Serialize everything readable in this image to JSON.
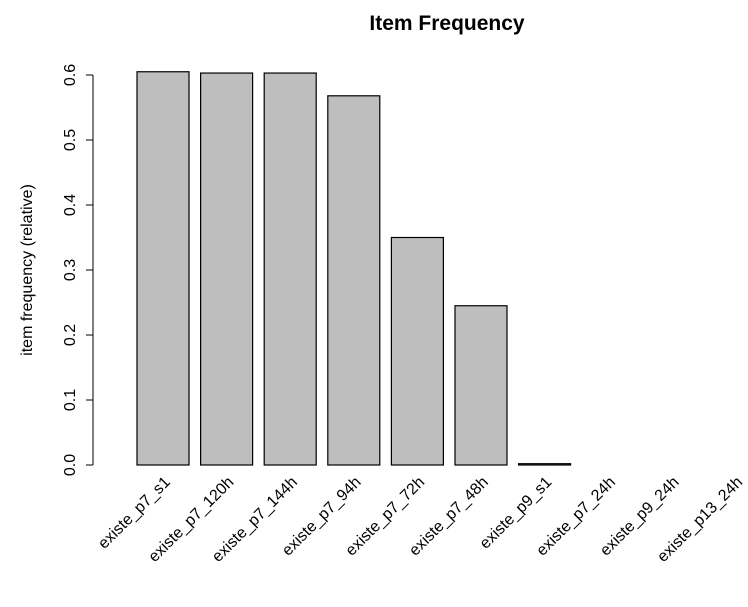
{
  "chart_data": {
    "type": "bar",
    "title": "Item Frequency",
    "xlabel": "",
    "ylabel": "item frequency (relative)",
    "categories": [
      "existe_p7_s1",
      "existe_p7_120h",
      "existe_p7_144h",
      "existe_p7_94h",
      "existe_p7_72h",
      "existe_p7_48h",
      "existe_p9_s1",
      "existe_p7_24h",
      "existe_p9_24h",
      "existe_p13_24h"
    ],
    "values": [
      0.605,
      0.603,
      0.603,
      0.568,
      0.35,
      0.245,
      0.002,
      0.0,
      0.0,
      0.0
    ],
    "ylim": [
      0,
      0.6
    ],
    "yticks": [
      "0.0",
      "0.1",
      "0.2",
      "0.3",
      "0.4",
      "0.5",
      "0.6"
    ],
    "grid": false,
    "colors": {
      "bar_fill": "#bebebe",
      "bar_stroke": "#000000"
    }
  }
}
